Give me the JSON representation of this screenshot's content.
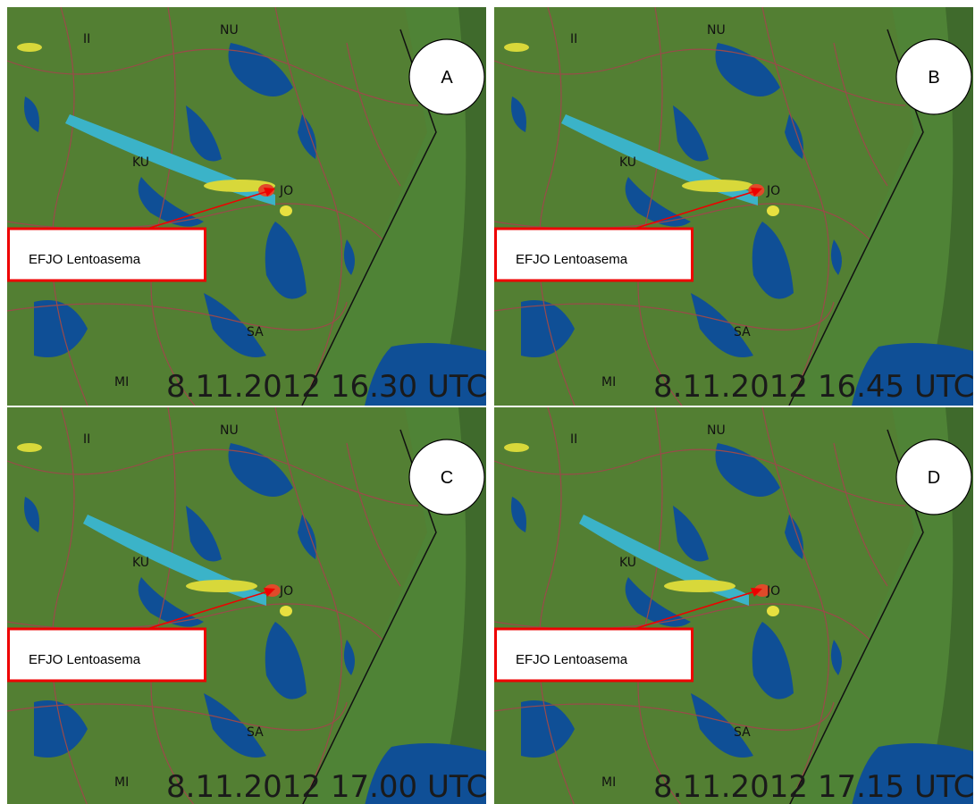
{
  "panels": [
    {
      "letter": "A",
      "timestamp": "8.11.2012 16.30 UTC",
      "callout": "EFJO Lentoasema",
      "places": [
        "II",
        "NU",
        "KU",
        "JO",
        "SA",
        "MI"
      ]
    },
    {
      "letter": "B",
      "timestamp": "8.11.2012 16.45 UTC",
      "callout": "EFJO Lentoasema",
      "places": [
        "II",
        "NU",
        "KU",
        "JO",
        "SA",
        "MI"
      ]
    },
    {
      "letter": "C",
      "timestamp": "8.11.2012 17.00 UTC",
      "callout": "EFJO Lentoasema",
      "places": [
        "II",
        "NU",
        "KU",
        "JO",
        "SA",
        "MI"
      ]
    },
    {
      "letter": "D",
      "timestamp": "8.11.2012 17.15 UTC",
      "callout": "EFJO Lentoasema",
      "places": [
        "II",
        "NU",
        "KU",
        "JO",
        "SA",
        "MI"
      ]
    }
  ]
}
